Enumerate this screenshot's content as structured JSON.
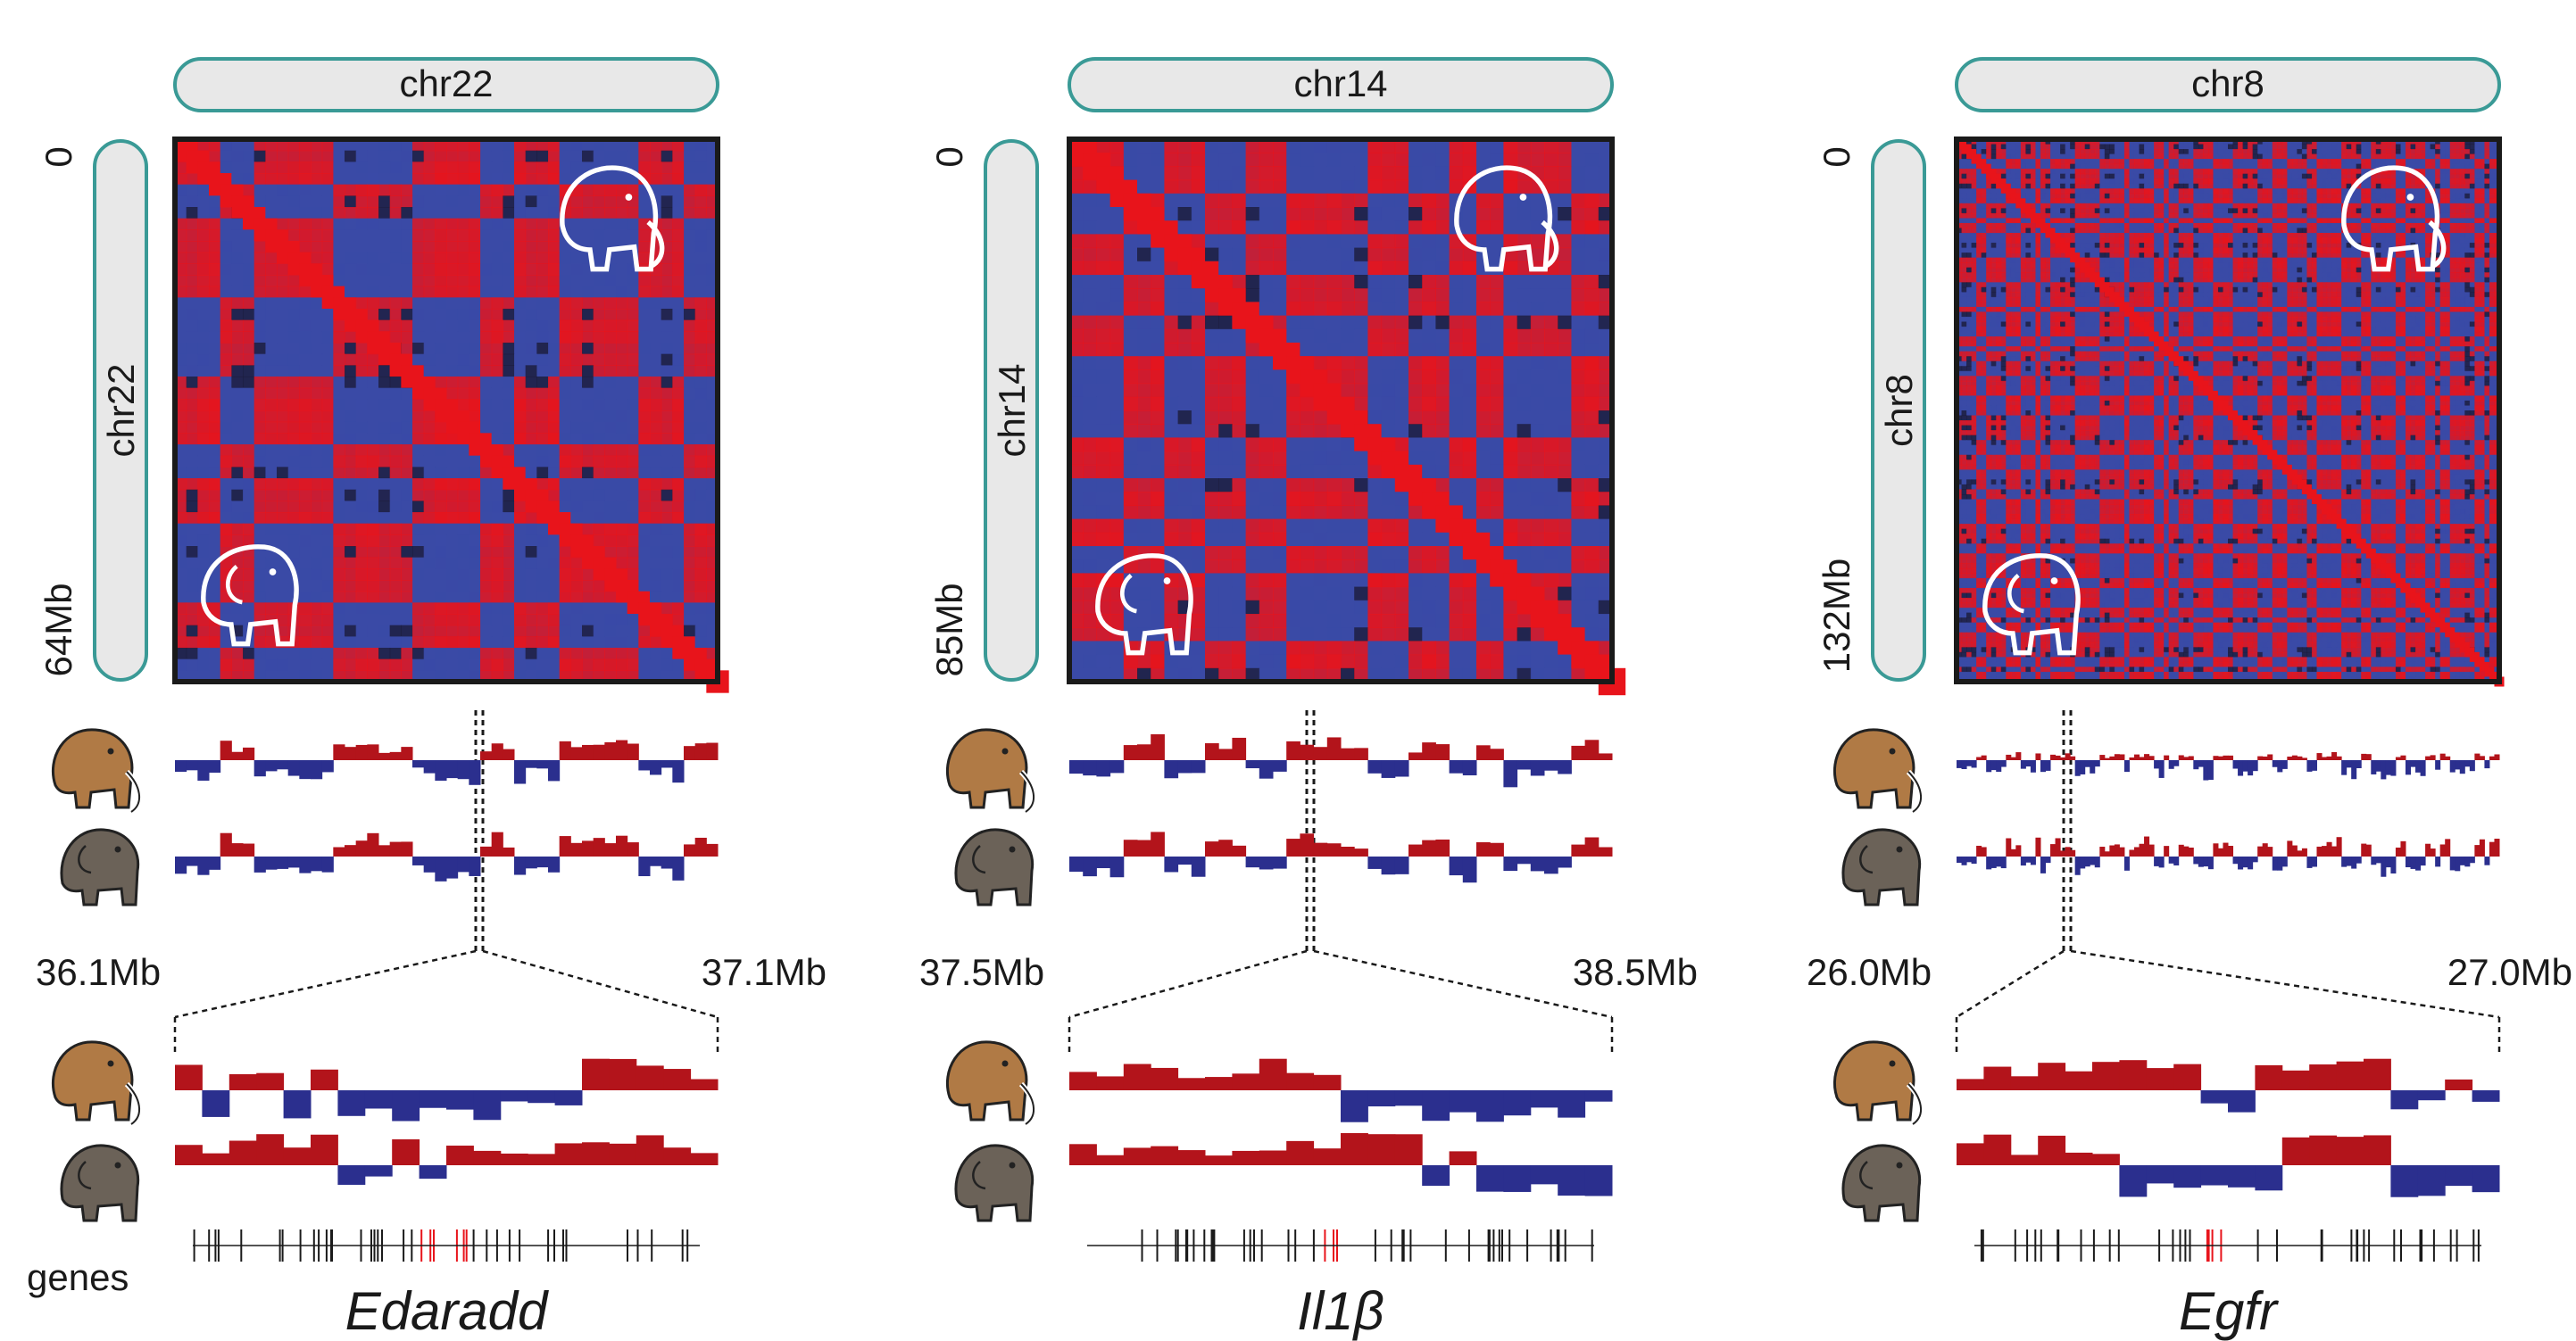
{
  "figure": {
    "row_label_genes": "genes",
    "colors": {
      "red": "#e8141b",
      "blue": "#3a4aa6",
      "dark_red": "#b3141b",
      "dark_blue": "#2b2f8e",
      "teal": "#3a9a96",
      "pill_fill": "#e8e8e8",
      "mammoth_brown": "#b07a45",
      "elephant_gray": "#6b6258"
    },
    "panels": [
      {
        "chrom_top": "chr22",
        "chrom_side": "chr22",
        "size_start": "0",
        "size_end": "64Mb",
        "zoom_start": "36.1Mb",
        "zoom_end": "37.1Mb",
        "gene": "Edaradd",
        "top_icon": "mammoth-icon",
        "bottom_icon": "elephant-icon"
      },
      {
        "chrom_top": "chr14",
        "chrom_side": "chr14",
        "size_start": "0",
        "size_end": "85Mb",
        "zoom_start": "37.5Mb",
        "zoom_end": "38.5Mb",
        "gene": "Il1β",
        "top_icon": "mammoth-icon",
        "bottom_icon": "elephant-icon"
      },
      {
        "chrom_top": "chr8",
        "chrom_side": "chr8",
        "size_start": "0",
        "size_end": "132Mb",
        "zoom_start": "26.0Mb",
        "zoom_end": "27.0Mb",
        "gene": "Egfr",
        "top_icon": "mammoth-icon",
        "bottom_icon": "elephant-icon"
      }
    ]
  }
}
